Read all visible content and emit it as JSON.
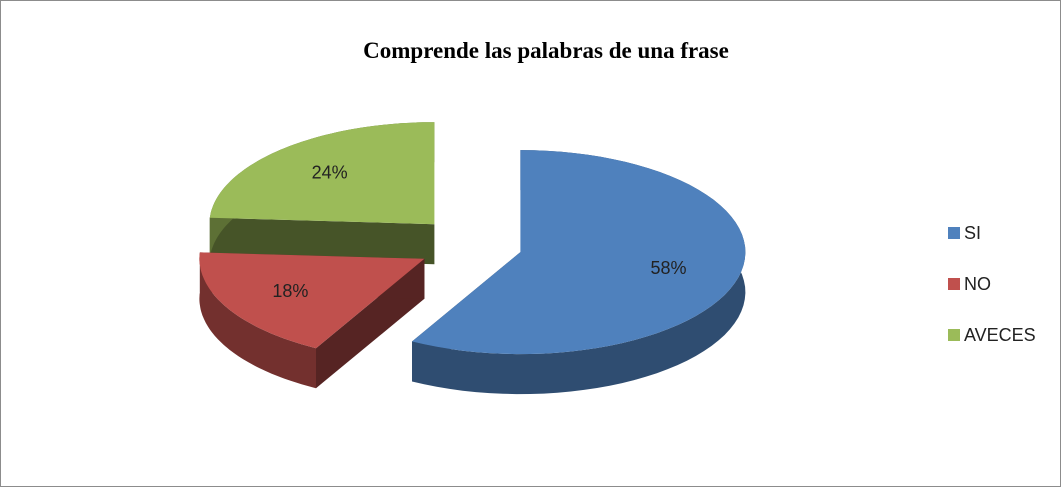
{
  "chart_data": {
    "type": "pie",
    "title": "Comprende las palabras de una frase",
    "categories": [
      "SI",
      "NO",
      "AVECES"
    ],
    "values": [
      58,
      18,
      24
    ],
    "value_labels": [
      "58%",
      "18%",
      "24%"
    ],
    "colors": [
      "#4f81bd",
      "#c0504d",
      "#9bbb59"
    ],
    "legend": "right"
  }
}
